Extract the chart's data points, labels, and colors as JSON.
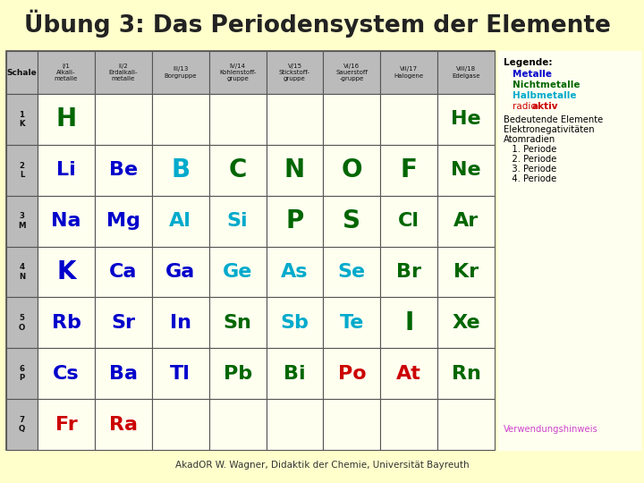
{
  "title": "Übung 3: Das Periodensystem der Elemente",
  "title_bg": "#FFFFCC",
  "page_bg": "#FFFFCC",
  "cell_bg": "#FFFFF0",
  "header_bg": "#BBBBBB",
  "grid_color": "#555555",
  "footer_text": "AkadOR W. Wagner, Didaktik der Chemie, Universität Bayreuth",
  "verwendung_text": "Verwendungshinweis",
  "verwendung_color": "#CC44CC",
  "col_headers": [
    "I/1\nAlkali-\nmetalle",
    "II/2\nErdalkali-\nmetalle",
    "III/13\nBorgruppe",
    "IV/14\nKohlenstoff-\ngruppe",
    "V/15\nStickstoff-\ngruppe",
    "VI/16\nSauerstoff\n-gruppe",
    "VII/17\nHalogene",
    "VIII/18\nEdelgase"
  ],
  "row_headers": [
    "1\nK",
    "2\nL",
    "3\nM",
    "4\nN",
    "5\nO",
    "6\nP",
    "7\nQ"
  ],
  "row_header_label": "Schale",
  "elements": [
    [
      "H",
      "",
      "",
      "",
      "",
      "",
      "",
      "He"
    ],
    [
      "Li",
      "Be",
      "B",
      "C",
      "N",
      "O",
      "F",
      "Ne"
    ],
    [
      "Na",
      "Mg",
      "Al",
      "Si",
      "P",
      "S",
      "Cl",
      "Ar"
    ],
    [
      "K",
      "Ca",
      "Ga",
      "Ge",
      "As",
      "Se",
      "Br",
      "Kr"
    ],
    [
      "Rb",
      "Sr",
      "In",
      "Sn",
      "Sb",
      "Te",
      "I",
      "Xe"
    ],
    [
      "Cs",
      "Ba",
      "Tl",
      "Pb",
      "Bi",
      "Po",
      "At",
      "Rn"
    ],
    [
      "Fr",
      "Ra",
      "",
      "",
      "",
      "",
      "",
      ""
    ]
  ],
  "element_colors": [
    [
      "#006600",
      "",
      "",
      "",
      "",
      "",
      "",
      "#006600"
    ],
    [
      "#0000CC",
      "#0000CC",
      "#00AACC",
      "#006600",
      "#006600",
      "#006600",
      "#006600",
      "#006600"
    ],
    [
      "#0000CC",
      "#0000CC",
      "#00AACC",
      "#00AACC",
      "#006600",
      "#006600",
      "#006600",
      "#006600"
    ],
    [
      "#0000CC",
      "#0000CC",
      "#0000CC",
      "#00AACC",
      "#00AACC",
      "#00AACC",
      "#006600",
      "#006600"
    ],
    [
      "#0000CC",
      "#0000CC",
      "#0000CC",
      "#006600",
      "#00AACC",
      "#00AACC",
      "#006600",
      "#006600"
    ],
    [
      "#0000CC",
      "#0000CC",
      "#0000CC",
      "#006600",
      "#006600",
      "#CC0000",
      "#CC0000",
      "#006600"
    ],
    [
      "#CC0000",
      "#CC0000",
      "",
      "",
      "",
      "",
      "",
      ""
    ]
  ],
  "legend_title": "Legende:",
  "legend_items": [
    {
      "text": "Metalle",
      "color": "#0000CC",
      "bold": true
    },
    {
      "text": "Nichtmetalle",
      "color": "#006600",
      "bold": true
    },
    {
      "text": "Halbmetalle",
      "color": "#00AACC",
      "bold": true
    },
    {
      "text_parts": [
        {
          "text": "radio",
          "bold": false
        },
        {
          "text": "aktiv",
          "bold": true
        }
      ],
      "color": "#CC0000"
    }
  ],
  "legend_extra": [
    "Bedeutende Elemente",
    "Elektronegativitäten",
    "Atomradien",
    "   1. Periode",
    "   2. Periode",
    "   3. Periode",
    "   4. Periode"
  ]
}
